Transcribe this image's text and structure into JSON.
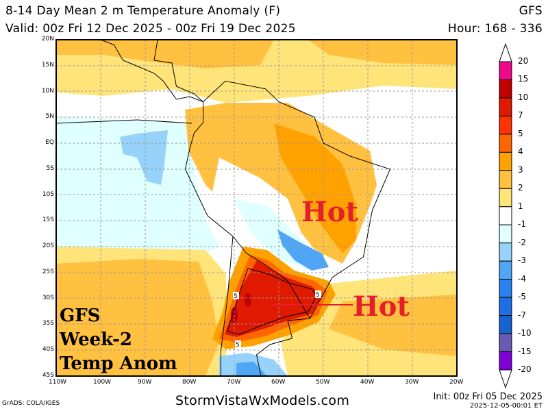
{
  "header": {
    "title": "8-14 Day Mean 2 m Temperature Anomaly (F)",
    "model": "GFS",
    "valid": "Valid: 00z Fri 12 Dec 2025 - 00z Fri 19 Dec 2025",
    "hours": "Hour: 168 - 336"
  },
  "map": {
    "lat_labels": [
      "20N",
      "15N",
      "10N",
      "5N",
      "EQ",
      "5S",
      "10S",
      "15S",
      "20S",
      "25S",
      "30S",
      "35S",
      "40S",
      "45S"
    ],
    "lon_labels": [
      "110W",
      "100W",
      "90W",
      "80W",
      "70W",
      "60W",
      "50W",
      "40W",
      "30W",
      "20W"
    ],
    "contour_labels": [
      "5",
      "5",
      "5"
    ],
    "annotations": {
      "hot_1": "Hot",
      "hot_2": "Hot",
      "box_lines": [
        "GFS",
        "Week-2",
        "Temp Anom"
      ]
    },
    "annotation_color": "#e3202a"
  },
  "colorbar": {
    "labels": [
      "20",
      "15",
      "10",
      "7",
      "5",
      "4",
      "3",
      "2",
      "1",
      "-1",
      "-2",
      "-3",
      "-4",
      "-5",
      "-7",
      "-10",
      "-15",
      "-20"
    ],
    "colors": [
      "#f0088a",
      "#c00000",
      "#e01a00",
      "#ff3300",
      "#ff6600",
      "#ffa200",
      "#ffc13f",
      "#ffe47a",
      "#ffffff",
      "#e0ffff",
      "#96d2fa",
      "#50a5f5",
      "#2882f0",
      "#1e6ee6",
      "#1464d2",
      "#6a5ab4",
      "#8000d8"
    ]
  },
  "footer": {
    "grads": "GrADS: COLA/IGES",
    "site": "StormVistaWxModels.com",
    "init": "Init: 00z Fri 05 Dec 2025",
    "stamp": "2025-12-05-00:01 ET"
  }
}
